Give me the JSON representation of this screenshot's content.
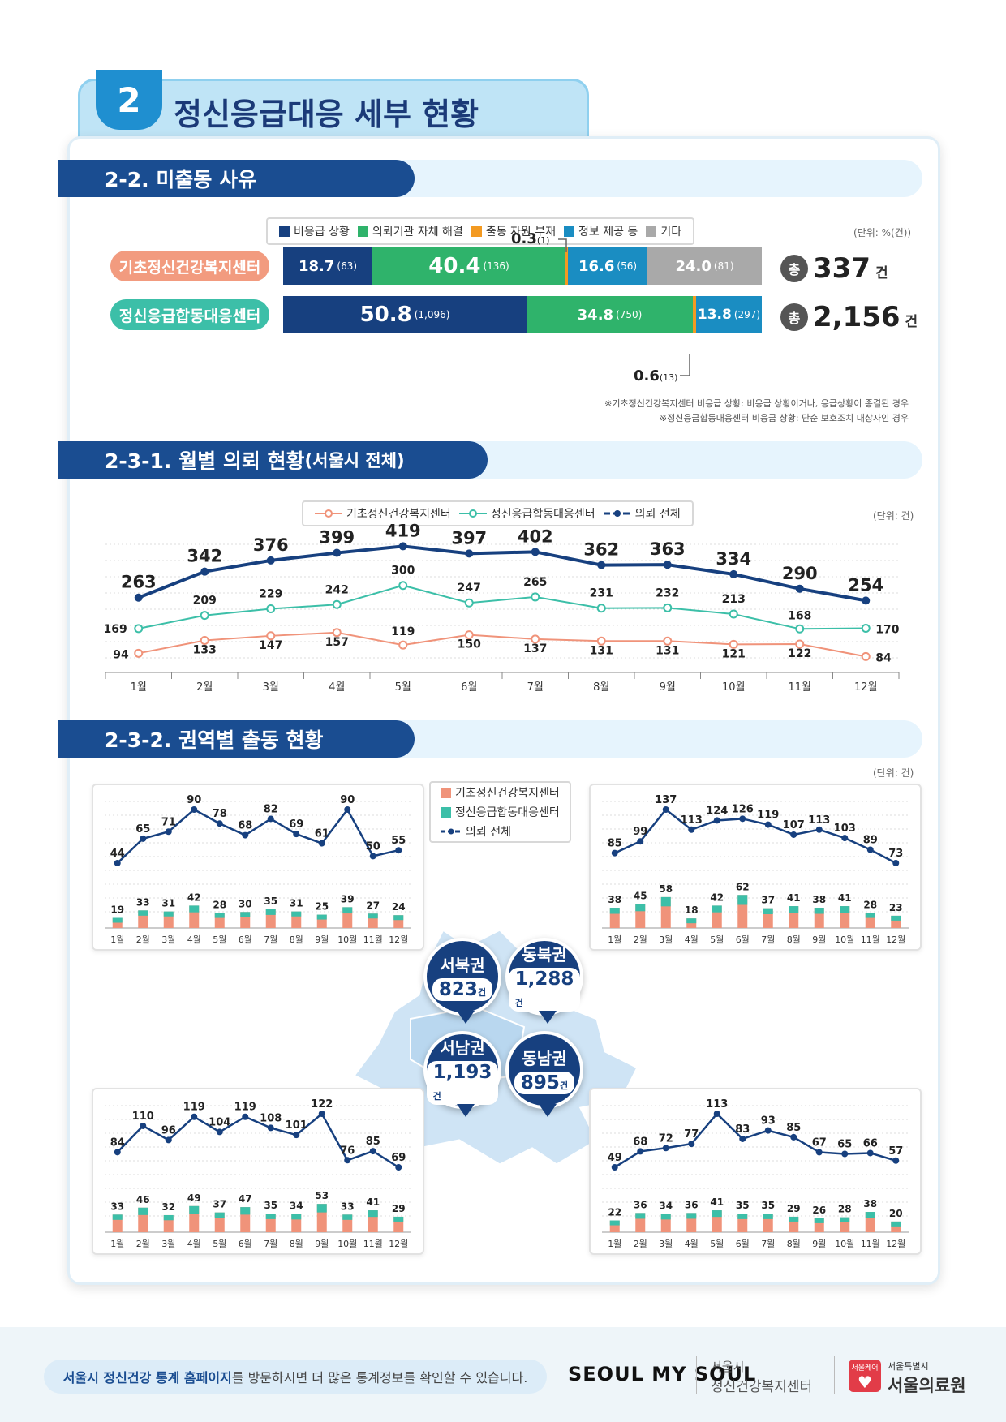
{
  "header": {
    "number": "2",
    "title": "정신응급대응 세부 현황"
  },
  "sec22": {
    "title": "2-2. 미출동 사유",
    "legend": [
      {
        "label": "비응급 상황",
        "color": "#17407f"
      },
      {
        "label": "의뢰기관 자체 해결",
        "color": "#2fb36b"
      },
      {
        "label": "출동 자원 부재",
        "color": "#f39a22"
      },
      {
        "label": "정보 제공 등",
        "color": "#1a8dc2"
      },
      {
        "label": "기타",
        "color": "#a9a9a9"
      }
    ],
    "unit": "(단위: %(건))",
    "rows": [
      {
        "name": "기초정신건강복지센터",
        "total": "337",
        "segments": [
          {
            "pct": "18.7",
            "cnt": "(63)"
          },
          {
            "pct": "40.4",
            "cnt": "(136)"
          },
          {
            "pct": "0.3",
            "cnt": "(1)"
          },
          {
            "pct": "16.6",
            "cnt": "(56)"
          },
          {
            "pct": "24.0",
            "cnt": "(81)"
          }
        ]
      },
      {
        "name": "정신응급합동대응센터",
        "total": "2,156",
        "segments": [
          {
            "pct": "50.8",
            "cnt": "(1,096)"
          },
          {
            "pct": "34.8",
            "cnt": "(750)"
          },
          {
            "pct": "0.6",
            "cnt": "(13)"
          },
          {
            "pct": "13.8",
            "cnt": "(297)"
          },
          {
            "pct": "0",
            "cnt": ""
          }
        ]
      }
    ],
    "total_prefix": "총",
    "total_unit": "건",
    "notes": [
      "※기초정신건강복지센터 비응급 상황: 비응급 상황이거나, 응급상황이 종결된 경우",
      "※정신응급합동대응센터 비응급 상황: 단순 보호조치 대상자인 경우"
    ]
  },
  "sec231": {
    "title": "2-3-1. 월별 의뢰 현황",
    "title_suffix": "(서울시 전체)",
    "unit": "(단위: 건)"
  },
  "sec232": {
    "title": "2-3-2. 권역별 출동 현황",
    "unit": "(단위: 건)",
    "legend": [
      "기초정신건강복지센터",
      "정신응급합동대응센터",
      "의뢰 전체"
    ],
    "regions": [
      {
        "name": "서북권",
        "total": "823",
        "unit": "건"
      },
      {
        "name": "동북권",
        "total": "1,288",
        "unit": "건"
      },
      {
        "name": "서남권",
        "total": "1,193",
        "unit": "건"
      },
      {
        "name": "동남권",
        "total": "895",
        "unit": "건"
      }
    ]
  },
  "chart_data": [
    {
      "type": "line",
      "title": "월별 의뢰 현황",
      "x": [
        "1월",
        "2월",
        "3월",
        "4월",
        "5월",
        "6월",
        "7월",
        "8월",
        "9월",
        "10월",
        "11월",
        "12월"
      ],
      "series": [
        {
          "name": "기초정신건강복지센터",
          "color": "#f0937a",
          "values": [
            94,
            133,
            147,
            157,
            119,
            150,
            137,
            131,
            131,
            121,
            122,
            84
          ]
        },
        {
          "name": "정신응급합동대응센터",
          "color": "#3cbfa8",
          "values": [
            169,
            209,
            229,
            242,
            300,
            247,
            265,
            231,
            232,
            213,
            168,
            170
          ]
        },
        {
          "name": "의뢰 전체",
          "color": "#17407f",
          "values": [
            263,
            342,
            376,
            399,
            419,
            397,
            402,
            362,
            363,
            334,
            290,
            254
          ]
        }
      ]
    },
    {
      "type": "bar",
      "title": "서북권",
      "x": [
        "1월",
        "2월",
        "3월",
        "4월",
        "5월",
        "6월",
        "7월",
        "8월",
        "9월",
        "10월",
        "11월",
        "12월"
      ],
      "stack_total": [
        19,
        33,
        31,
        42,
        28,
        30,
        35,
        31,
        25,
        39,
        27,
        24
      ],
      "line_total": [
        44,
        65,
        71,
        90,
        78,
        68,
        82,
        69,
        61,
        90,
        50,
        55
      ]
    },
    {
      "type": "bar",
      "title": "동북권",
      "x": [
        "1월",
        "2월",
        "3월",
        "4월",
        "5월",
        "6월",
        "7월",
        "8월",
        "9월",
        "10월",
        "11월",
        "12월"
      ],
      "stack_total": [
        38,
        45,
        58,
        18,
        42,
        62,
        37,
        41,
        38,
        41,
        28,
        23
      ],
      "line_total": [
        85,
        99,
        137,
        113,
        124,
        126,
        119,
        107,
        113,
        103,
        89,
        73
      ]
    },
    {
      "type": "bar",
      "title": "서남권",
      "x": [
        "1월",
        "2월",
        "3월",
        "4월",
        "5월",
        "6월",
        "7월",
        "8월",
        "9월",
        "10월",
        "11월",
        "12월"
      ],
      "stack_total": [
        33,
        46,
        32,
        49,
        37,
        47,
        35,
        34,
        53,
        33,
        41,
        29
      ],
      "line_total": [
        84,
        110,
        96,
        119,
        104,
        119,
        108,
        101,
        122,
        76,
        85,
        69
      ]
    },
    {
      "type": "bar",
      "title": "동남권",
      "x": [
        "1월",
        "2월",
        "3월",
        "4월",
        "5월",
        "6월",
        "7월",
        "8월",
        "9월",
        "10월",
        "11월",
        "12월"
      ],
      "stack_total": [
        22,
        36,
        34,
        36,
        41,
        35,
        35,
        29,
        26,
        28,
        38,
        20
      ],
      "line_total": [
        49,
        68,
        72,
        77,
        113,
        83,
        93,
        85,
        67,
        65,
        66,
        57
      ]
    }
  ],
  "footer": {
    "pre": "서울시 정신건강 통계 홈페이지",
    "post": "를 방문하시면 더 많은 통계정보를 확인할 수 있습니다.",
    "logo1": "SEOUL MY SOUL",
    "logo2a": "서울시",
    "logo2b": "정신건강복지센터",
    "logo3a": "서울특별시",
    "logo3b": "서울의료원",
    "logo3badge": "서울케어"
  }
}
